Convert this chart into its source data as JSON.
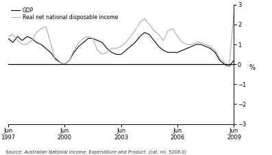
{
  "title": "",
  "ylabel": "%",
  "ylim": [
    -3,
    3
  ],
  "yticks": [
    -3,
    -2,
    -1,
    0,
    1,
    2,
    3
  ],
  "source_text": "Source: Australian National Income, Expenditure and Product, (cat. no. 5206.0)",
  "legend_gdp": "GDP",
  "legend_rndi": "Real net national disposable income",
  "gdp_color": "#000000",
  "rndi_color": "#aaaaaa",
  "background_color": "#ffffff",
  "xtick_labels": [
    "Jun\n1997",
    "Jun\n2000",
    "Jun\n2003",
    "Jun\n2006",
    "Jun\n2009"
  ],
  "xtick_positions": [
    0,
    12,
    24,
    36,
    48
  ],
  "gdp_y": [
    1.3,
    1.1,
    1.4,
    1.2,
    1.4,
    1.3,
    1.1,
    1.0,
    0.8,
    0.6,
    0.3,
    0.1,
    0.0,
    0.2,
    0.6,
    0.9,
    1.1,
    1.3,
    1.3,
    1.2,
    1.1,
    0.8,
    0.6,
    0.5,
    0.5,
    0.7,
    0.9,
    1.1,
    1.4,
    1.6,
    1.5,
    1.2,
    0.9,
    0.7,
    0.6,
    0.6,
    0.6,
    0.7,
    0.8,
    0.9,
    1.0,
    1.0,
    0.9,
    0.8,
    0.6,
    0.2,
    0.0,
    -0.1,
    0.2
  ],
  "rndi_y": [
    1.4,
    1.5,
    1.2,
    1.0,
    1.0,
    1.2,
    1.6,
    1.8,
    1.9,
    1.1,
    0.2,
    0.1,
    0.0,
    0.2,
    0.7,
    1.1,
    1.3,
    1.4,
    1.3,
    0.7,
    0.5,
    0.6,
    0.8,
    0.8,
    0.9,
    1.1,
    1.4,
    1.7,
    2.1,
    2.3,
    2.0,
    1.7,
    1.5,
    1.2,
    1.7,
    1.8,
    1.4,
    1.1,
    1.0,
    1.0,
    1.1,
    1.1,
    1.0,
    0.9,
    0.7,
    0.3,
    0.1,
    -0.1,
    2.6
  ],
  "gdp_linewidth": 0.8,
  "rndi_linewidth": 0.8
}
